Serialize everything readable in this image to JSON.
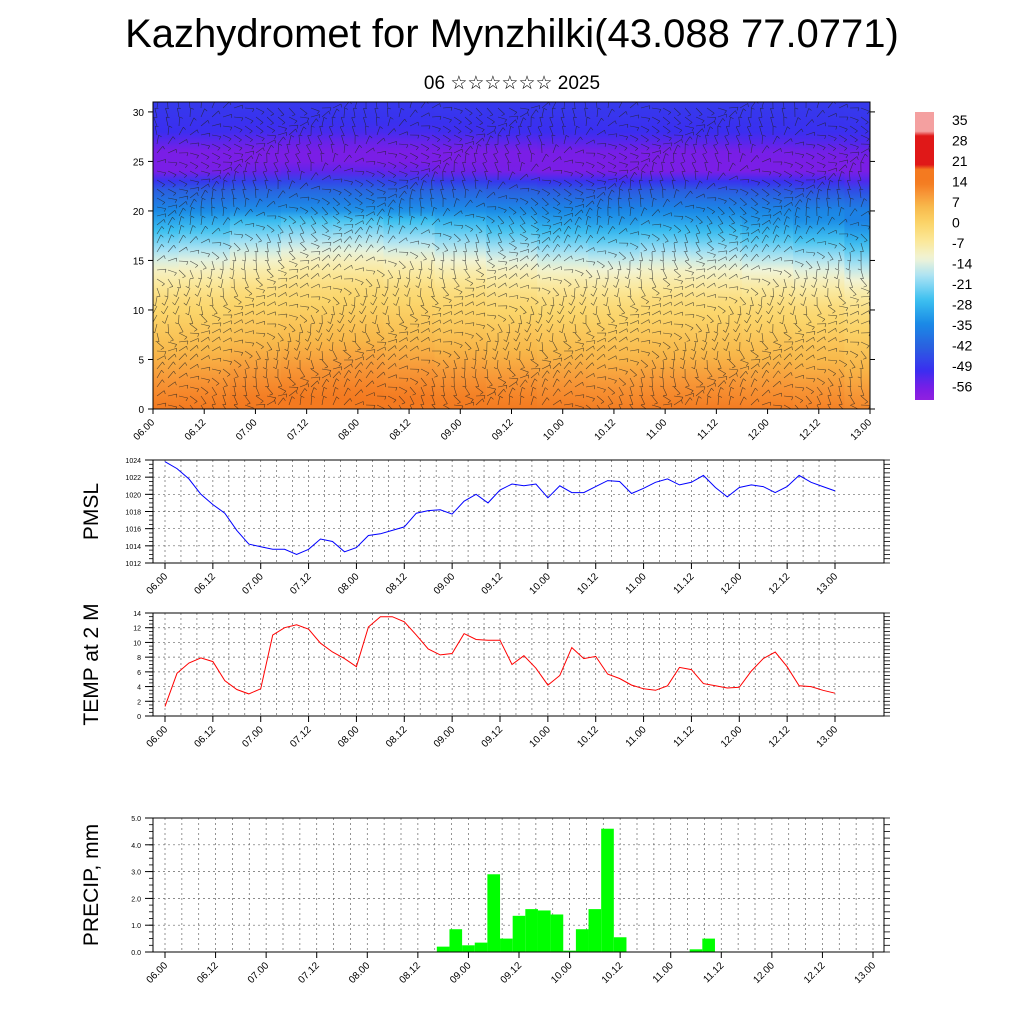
{
  "title": "Kazhydromet for Mynzhilki(43.088 77.0771)",
  "subtitle": "06 ☆☆☆☆☆☆ 2025",
  "colorbar": {
    "labels": [
      "35",
      "28",
      "21",
      "14",
      "7",
      "0",
      "-7",
      "-14",
      "-21",
      "-28",
      "-35",
      "-42",
      "-49",
      "-56"
    ],
    "colors": [
      "#f4a0a0",
      "#e01818",
      "#f03a10",
      "#f87a10",
      "#fbb430",
      "#fde27a",
      "#fff8c0",
      "#c8ecf6",
      "#3cc4f0",
      "#1488e4",
      "#2060dc",
      "#3c3cf0",
      "#4018e0",
      "#8c2ce8"
    ]
  },
  "chart_data": [
    {
      "type": "heatmap",
      "name": "cross-section",
      "x_ticks": [
        "06.00",
        "06.12",
        "07.00",
        "07.12",
        "08.00",
        "08.12",
        "09.00",
        "09.12",
        "10.00",
        "10.12",
        "11.00",
        "11.12",
        "12.00",
        "12.12",
        "13.00"
      ],
      "y_ticks": [
        "0",
        "5",
        "10",
        "15",
        "20",
        "25",
        "30"
      ],
      "ylim": [
        0,
        31
      ],
      "temperature_by_height": [
        {
          "h": 0,
          "t": 14
        },
        {
          "h": 3,
          "t": 10
        },
        {
          "h": 7,
          "t": 4
        },
        {
          "h": 11,
          "t": -2
        },
        {
          "h": 14,
          "t": -10
        },
        {
          "h": 16,
          "t": -18
        },
        {
          "h": 19,
          "t": -30
        },
        {
          "h": 22,
          "t": -42
        },
        {
          "h": 24,
          "t": -56
        },
        {
          "h": 26,
          "t": -56
        },
        {
          "h": 28,
          "t": -50
        },
        {
          "h": 31,
          "t": -48
        }
      ],
      "freezing_level": [
        14,
        14.2,
        14.8,
        15.2,
        15.3,
        15.0,
        14.6,
        14.2,
        13.8,
        13.6,
        13.9,
        13.8,
        13.5,
        13.2,
        12.6
      ]
    },
    {
      "type": "line",
      "ylabel": "PMSL",
      "color": "#0000ff",
      "x_ticks": [
        "06.00",
        "06.12",
        "07.00",
        "07.12",
        "08.00",
        "08.12",
        "09.00",
        "09.12",
        "10.00",
        "10.12",
        "11.00",
        "11.12",
        "12.00",
        "12.12",
        "13.00"
      ],
      "y_ticks": [
        "1024",
        "1022",
        "1020",
        "1018",
        "1016",
        "1014",
        "1012"
      ],
      "ylim": [
        1012,
        1024
      ],
      "values": [
        1023.8,
        1023.0,
        1021.8,
        1020.0,
        1018.8,
        1017.8,
        1015.8,
        1014.2,
        1013.9,
        1013.6,
        1013.6,
        1013.0,
        1013.6,
        1014.8,
        1014.5,
        1013.3,
        1013.8,
        1015.2,
        1015.4,
        1015.8,
        1016.2,
        1017.8,
        1018.1,
        1018.2,
        1017.7,
        1019.2,
        1020.0,
        1019.0,
        1020.5,
        1021.2,
        1021.0,
        1021.2,
        1019.6,
        1021.0,
        1020.2,
        1020.2,
        1020.9,
        1021.6,
        1021.5,
        1020.1,
        1020.7,
        1021.4,
        1021.8,
        1021.1,
        1021.4,
        1022.2,
        1020.8,
        1019.7,
        1020.8,
        1021.1,
        1020.9,
        1020.2,
        1020.9,
        1022.2,
        1021.4,
        1020.9,
        1020.4
      ]
    },
    {
      "type": "line",
      "ylabel": "TEMP at 2 M",
      "color": "#ff0000",
      "x_ticks": [
        "06.00",
        "06.12",
        "07.00",
        "07.12",
        "08.00",
        "08.12",
        "09.00",
        "09.12",
        "10.00",
        "10.12",
        "11.00",
        "11.12",
        "12.00",
        "12.12",
        "13.00"
      ],
      "y_ticks": [
        "14",
        "12",
        "10",
        "8",
        "6",
        "4",
        "2",
        "0"
      ],
      "ylim": [
        0,
        14
      ],
      "values": [
        1.3,
        5.8,
        7.2,
        7.9,
        7.4,
        4.8,
        3.6,
        3.0,
        3.7,
        11.0,
        12.0,
        12.4,
        11.8,
        9.9,
        8.7,
        7.8,
        6.7,
        12.1,
        13.5,
        13.5,
        12.8,
        11.0,
        9.1,
        8.3,
        8.5,
        11.2,
        10.4,
        10.3,
        10.3,
        7.0,
        8.2,
        6.5,
        4.2,
        5.5,
        9.3,
        7.8,
        8.1,
        5.7,
        5.1,
        4.2,
        3.7,
        3.5,
        4.1,
        6.6,
        6.3,
        4.4,
        4.1,
        3.8,
        3.9,
        6.1,
        7.8,
        8.7,
        6.7,
        4.1,
        4.0,
        3.5,
        3.1
      ]
    },
    {
      "type": "bar",
      "ylabel": "PRECIP, mm",
      "color": "#00ff00",
      "x_ticks": [
        "06.00",
        "06.12",
        "07.00",
        "07.12",
        "08.00",
        "08.12",
        "09.00",
        "09.12",
        "10.00",
        "10.12",
        "11.00",
        "11.12",
        "12.00",
        "12.12",
        "13.00"
      ],
      "y_ticks": [
        "5.0",
        "4.0",
        "3.0",
        "2.0",
        "1.0",
        "0.0"
      ],
      "ylim": [
        0,
        5
      ],
      "values": [
        0,
        0,
        0,
        0,
        0,
        0,
        0,
        0,
        0,
        0,
        0,
        0,
        0,
        0,
        0,
        0,
        0,
        0,
        0,
        0,
        0,
        0,
        0.2,
        0.85,
        0.25,
        0.35,
        2.9,
        0.5,
        1.35,
        1.6,
        1.55,
        1.4,
        0.05,
        0.85,
        1.6,
        4.6,
        0.55,
        0,
        0,
        0,
        0,
        0,
        0.1,
        0.5,
        0.02,
        0,
        0,
        0,
        0,
        0,
        0,
        0,
        0,
        0,
        0,
        0,
        0
      ]
    }
  ]
}
